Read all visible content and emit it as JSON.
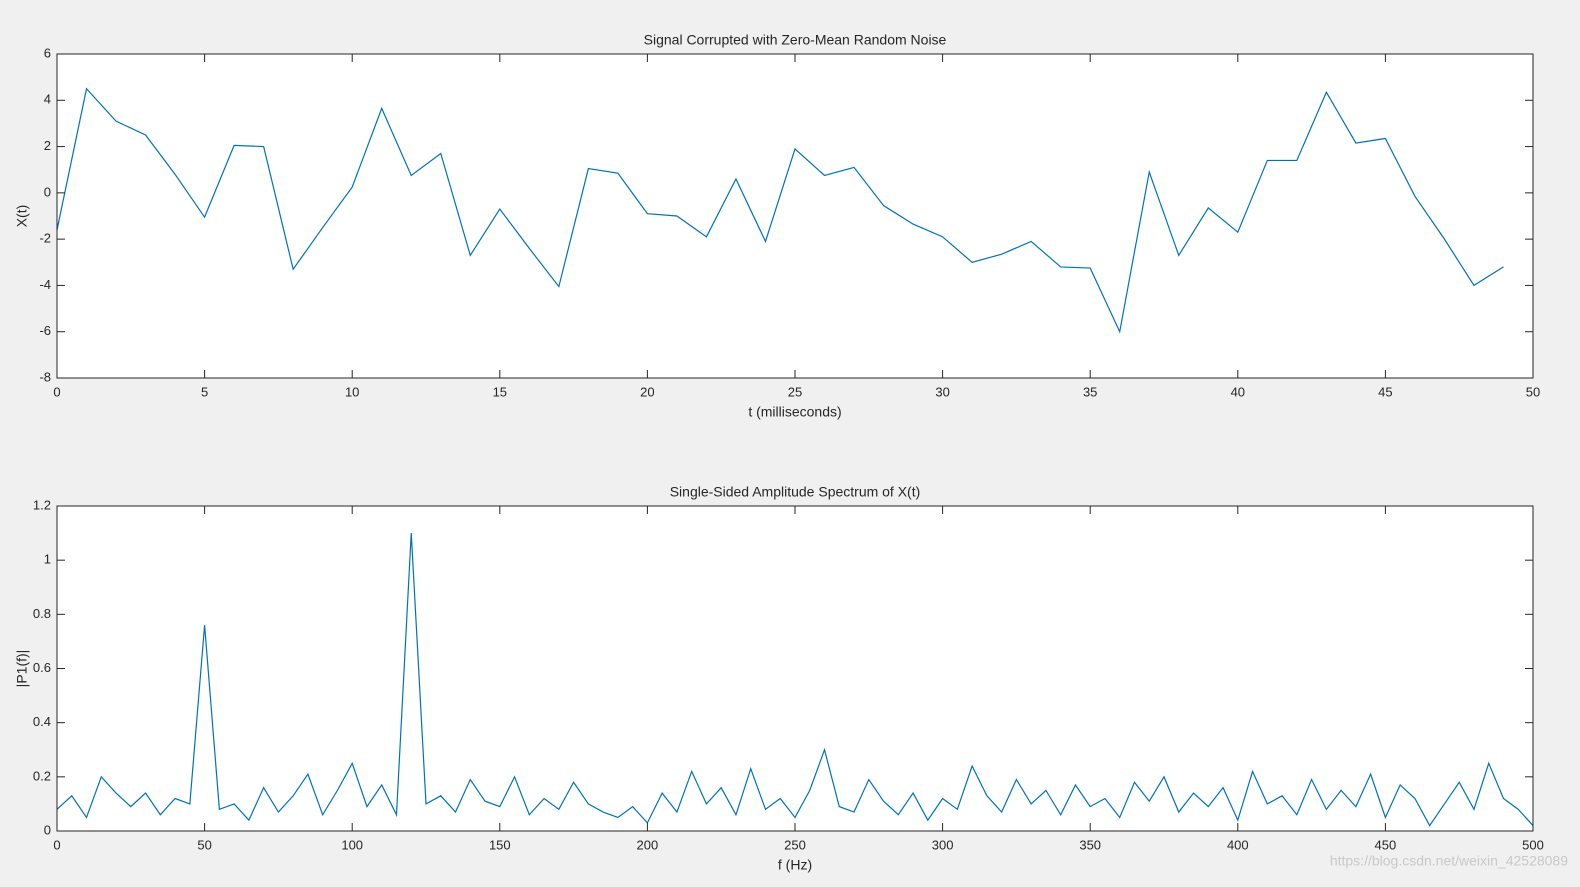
{
  "chart_data": [
    {
      "type": "line",
      "title": "Signal Corrupted with Zero-Mean Random Noise",
      "xlabel": "t (milliseconds)",
      "ylabel": "X(t)",
      "x": [
        0,
        1,
        2,
        3,
        4,
        5,
        6,
        7,
        8,
        9,
        10,
        11,
        12,
        13,
        14,
        15,
        16,
        17,
        18,
        19,
        20,
        21,
        22,
        23,
        24,
        25,
        26,
        27,
        28,
        29,
        30,
        31,
        32,
        33,
        34,
        35,
        36,
        37,
        38,
        39,
        40,
        41,
        42,
        43,
        44,
        45,
        46,
        47,
        48,
        49
      ],
      "series": [
        {
          "color": "#0072bd",
          "values": [
            -1.6,
            4.5,
            3.1,
            2.5,
            0.8,
            -1.05,
            2.05,
            2.0,
            -3.3,
            -1.5,
            0.25,
            3.65,
            0.75,
            1.7,
            -2.7,
            -0.7,
            -2.4,
            -4.05,
            1.05,
            0.85,
            -0.9,
            -1.0,
            -1.9,
            0.6,
            -2.1,
            1.9,
            0.75,
            1.1,
            -0.55,
            -1.35,
            -1.9,
            -3.0,
            -2.65,
            -2.1,
            -3.2,
            -3.25,
            -6.0,
            0.9,
            -2.7,
            -0.65,
            -1.7,
            1.4,
            1.4,
            4.35,
            2.15,
            2.35,
            -0.15,
            -2.0,
            -4.0,
            -3.2
          ]
        }
      ],
      "xlim": [
        0,
        50
      ],
      "xticks": [
        0,
        5,
        10,
        15,
        20,
        25,
        30,
        35,
        40,
        45,
        50
      ],
      "ylim": [
        -8,
        6
      ],
      "yticks": [
        -8,
        -6,
        -4,
        -2,
        0,
        2,
        4,
        6
      ]
    },
    {
      "type": "line",
      "title": "Single-Sided Amplitude Spectrum of X(t)",
      "xlabel": "f (Hz)",
      "ylabel": "|P1(f)|",
      "x": [
        0,
        5,
        10,
        15,
        20,
        25,
        30,
        35,
        40,
        45,
        50,
        55,
        60,
        65,
        70,
        75,
        80,
        85,
        90,
        95,
        100,
        105,
        110,
        115,
        120,
        125,
        130,
        135,
        140,
        145,
        150,
        155,
        160,
        165,
        170,
        175,
        180,
        185,
        190,
        195,
        200,
        205,
        210,
        215,
        220,
        225,
        230,
        235,
        240,
        245,
        250,
        255,
        260,
        265,
        270,
        275,
        280,
        285,
        290,
        295,
        300,
        305,
        310,
        315,
        320,
        325,
        330,
        335,
        340,
        345,
        350,
        355,
        360,
        365,
        370,
        375,
        380,
        385,
        390,
        395,
        400,
        405,
        410,
        415,
        420,
        425,
        430,
        435,
        440,
        445,
        450,
        455,
        460,
        465,
        470,
        475,
        480,
        485,
        490,
        495,
        500
      ],
      "series": [
        {
          "color": "#0072bd",
          "values": [
            0.08,
            0.13,
            0.05,
            0.2,
            0.14,
            0.09,
            0.14,
            0.06,
            0.12,
            0.1,
            0.76,
            0.08,
            0.1,
            0.04,
            0.16,
            0.07,
            0.13,
            0.21,
            0.06,
            0.15,
            0.25,
            0.09,
            0.17,
            0.06,
            1.1,
            0.1,
            0.13,
            0.07,
            0.19,
            0.11,
            0.09,
            0.2,
            0.06,
            0.12,
            0.08,
            0.18,
            0.1,
            0.07,
            0.05,
            0.09,
            0.03,
            0.14,
            0.07,
            0.22,
            0.1,
            0.16,
            0.06,
            0.23,
            0.08,
            0.12,
            0.05,
            0.15,
            0.3,
            0.09,
            0.07,
            0.19,
            0.11,
            0.06,
            0.14,
            0.04,
            0.12,
            0.08,
            0.24,
            0.13,
            0.07,
            0.19,
            0.1,
            0.15,
            0.06,
            0.17,
            0.09,
            0.12,
            0.05,
            0.18,
            0.11,
            0.2,
            0.07,
            0.14,
            0.09,
            0.16,
            0.04,
            0.22,
            0.1,
            0.13,
            0.06,
            0.19,
            0.08,
            0.15,
            0.09,
            0.21,
            0.05,
            0.17,
            0.12,
            0.02,
            0.1,
            0.18,
            0.08,
            0.25,
            0.12,
            0.08,
            0.02
          ]
        }
      ],
      "xlim": [
        0,
        500
      ],
      "xticks": [
        0,
        50,
        100,
        150,
        200,
        250,
        300,
        350,
        400,
        450,
        500
      ],
      "ylim": [
        0,
        1.2
      ],
      "yticks": [
        0,
        0.2,
        0.4,
        0.6,
        0.8,
        1,
        1.2
      ]
    }
  ],
  "watermark": "https://blog.csdn.net/weixin_42528089"
}
